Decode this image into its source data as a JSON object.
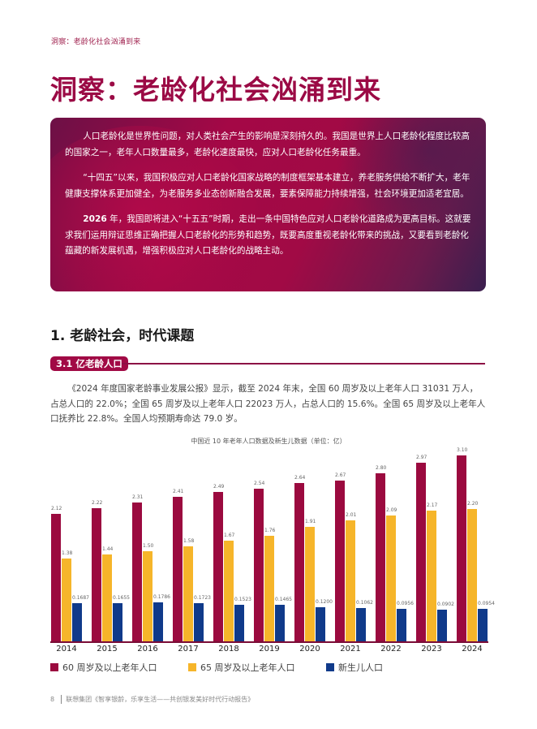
{
  "header": {
    "running_head": "洞察：老龄化社会汹涌到来",
    "page_title": "洞察：老龄化社会汹涌到来"
  },
  "banner": {
    "paragraphs": [
      {
        "lead": "",
        "text": "人口老龄化是世界性问题，对人类社会产生的影响是深刻持久的。我国是世界上人口老龄化程度比较高的国家之一，老年人口数量最多，老龄化速度最快，应对人口老龄化任务最重。"
      },
      {
        "lead": "",
        "text": "“十四五”以来，我国积极应对人口老龄化国家战略的制度框架基本建立，养老服务供给不断扩大，老年健康支撑体系更加健全，为老服务多业态创新融合发展，要素保障能力持续增强，社会环境更加适老宜居。"
      },
      {
        "lead": "2026",
        "text": " 年，我国即将进入“十五五”时期，走出一条中国特色应对人口老龄化道路成为更高目标。这就要求我们运用辩证思维正确把握人口老龄化的形势和趋势，既要高度重视老龄化带来的挑战，又要看到老龄化蕴藏的新发展机遇，增强积极应对人口老龄化的战略主动。"
      }
    ]
  },
  "section": {
    "title": "1. 老龄社会，时代课题",
    "subsection_tag": "3.1 亿老龄人口",
    "intro": "《2024 年度国家老龄事业发展公报》显示，截至 2024 年末，全国 60 周岁及以上老年人口 31031 万人，占总人口的 22.0%；全国 65 周岁及以上老年人口 22023 万人，占总人口的 15.6%。全国 65 周岁及以上老年人口抚养比 22.8%。全国人均预期寿命达 79.0 岁。"
  },
  "colors": {
    "brand": "#9b0a45",
    "series_60": "#9b0a3f",
    "series_65": "#f6b52a",
    "series_newborn": "#103a8a"
  },
  "chart_data": {
    "type": "bar",
    "title": "中国近 10 年老年人口数据及新生儿数据（单位：亿）",
    "xlabel": "",
    "ylabel": "亿",
    "categories": [
      "2014",
      "2015",
      "2016",
      "2017",
      "2018",
      "2019",
      "2020",
      "2021",
      "2022",
      "2023",
      "2024"
    ],
    "series": [
      {
        "name": "60 周岁及以上老年人口",
        "color": "#9b0a3f",
        "values": [
          2.12,
          2.22,
          2.31,
          2.41,
          2.49,
          2.54,
          2.64,
          2.67,
          2.8,
          2.97,
          3.1
        ]
      },
      {
        "name": "65 周岁及以上老年人口",
        "color": "#f6b52a",
        "values": [
          1.38,
          1.44,
          1.5,
          1.58,
          1.67,
          1.76,
          1.91,
          2.01,
          2.09,
          2.17,
          2.2
        ]
      },
      {
        "name": "新生儿人口",
        "color": "#103a8a",
        "values": [
          0.1687,
          0.1655,
          0.1786,
          0.1723,
          0.1523,
          0.1465,
          0.12,
          0.1062,
          0.0956,
          0.0902,
          0.0954
        ]
      }
    ],
    "value_labels": {
      "s60": [
        "2.12",
        "2.22",
        "2.31",
        "2.41",
        "2.49",
        "2.54",
        "2.64",
        "2.67",
        "2.80",
        "2.97",
        "3.10"
      ],
      "s65": [
        "1.38",
        "1.44",
        "1.50",
        "1.58",
        "1.67",
        "1.76",
        "1.91",
        "2.01",
        "2.09",
        "2.17",
        "2.20"
      ],
      "newborn": [
        "0.1687",
        "0.1655",
        "0.1786",
        "0.1723",
        "0.1523",
        "0.1465",
        "0.1200",
        "0.1062",
        "0.0956",
        "0.0902",
        "0.0954"
      ]
    },
    "grid": false,
    "legend_position": "bottom"
  },
  "footer": {
    "page_number": "8",
    "source": "联想集团《智享银龄，乐享生活——共创银发美好时代行动报告》"
  }
}
